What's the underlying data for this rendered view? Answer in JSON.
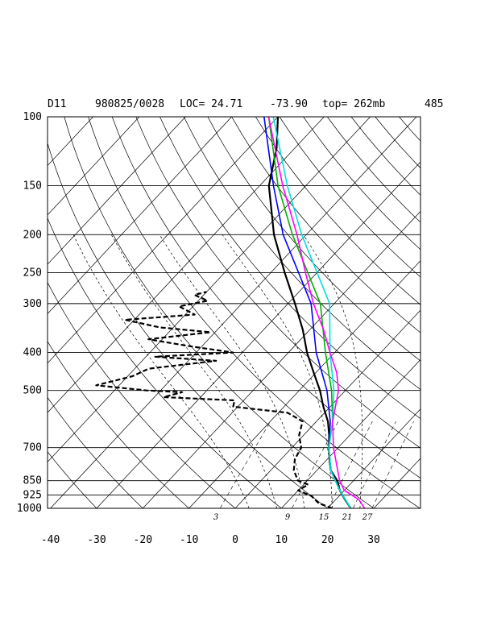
{
  "header": {
    "station": "D11",
    "datetime": "980825/0028",
    "loc": "LOC= 24.71",
    "lon": "-73.90",
    "top": "top= 262mb",
    "num": "485"
  },
  "chart_data": {
    "type": "line",
    "title": "D11    980825/0028 LOC= 24.71   -73.90  top= 262mb    485",
    "xlabel": "",
    "ylabel": "",
    "x_scale": "skewT",
    "y_scale": "log",
    "pressure_levels": [
      100,
      150,
      200,
      250,
      300,
      400,
      500,
      700,
      850,
      925,
      1000
    ],
    "temperature_ticks": [
      -40,
      -30,
      -20,
      -10,
      0,
      10,
      20,
      30
    ],
    "mixing_ratio_labels": [
      "3",
      "9",
      "15",
      "21",
      "27"
    ],
    "grid": true,
    "series": [
      {
        "style": "solid",
        "color": "#000000",
        "p": [
          1000,
          950,
          900,
          850,
          800,
          750,
          700,
          650,
          600,
          550,
          500,
          450,
          400,
          350,
          300,
          250,
          200,
          150,
          120,
          100
        ],
        "t": [
          25,
          22,
          19,
          16.5,
          13,
          10.5,
          8,
          5.5,
          2.5,
          -1.5,
          -5.5,
          -10.5,
          -16,
          -21.5,
          -28.5,
          -37,
          -47,
          -58,
          -64,
          -70
        ]
      },
      {
        "style": "dashed",
        "color": "#000000",
        "p": [
          1000,
          970,
          930,
          900,
          870,
          850,
          800,
          750,
          700,
          650,
          600,
          570,
          550,
          530,
          520,
          505,
          500,
          485,
          460,
          440,
          420,
          410,
          400,
          385,
          370,
          355,
          345,
          330,
          320,
          305,
          295,
          285,
          280
        ],
        "t": [
          21,
          17,
          14,
          10,
          11,
          8,
          5,
          3,
          2,
          -1,
          -3,
          -8,
          -21,
          -22,
          -38,
          -35,
          -43,
          -55,
          -49,
          -47,
          -34,
          -48,
          -32,
          -43,
          -53,
          -41,
          -53,
          -62,
          -48,
          -53,
          -48,
          -52,
          -50
        ]
      },
      {
        "style": "solid",
        "color": "#0000ff",
        "p": [
          1000,
          900,
          800,
          700,
          600,
          500,
          400,
          300,
          200,
          150,
          100
        ],
        "t": [
          25,
          19,
          13,
          8,
          3,
          -4,
          -14,
          -25,
          -45,
          -57,
          -73
        ]
      },
      {
        "style": "solid",
        "color": "#00b000",
        "p": [
          1000,
          900,
          800,
          700,
          600,
          500,
          400,
          300,
          200,
          150,
          100
        ],
        "t": [
          25,
          19,
          13,
          8,
          3.5,
          -3,
          -12,
          -23,
          -43,
          -56,
          -72
        ]
      },
      {
        "style": "solid",
        "color": "#00e0e0",
        "p": [
          1000,
          900,
          800,
          700,
          600,
          500,
          400,
          300,
          200,
          150,
          100
        ],
        "t": [
          25,
          19,
          13,
          8,
          3.5,
          -2.5,
          -11,
          -21,
          -41,
          -54,
          -71
        ]
      },
      {
        "style": "solid",
        "color": "#ff00ff",
        "p": [
          1000,
          950,
          900,
          850,
          800,
          700,
          600,
          500,
          450,
          400,
          350,
          300,
          250,
          200,
          150,
          100
        ],
        "t": [
          28,
          25,
          20,
          17,
          14.5,
          9,
          3.5,
          -1.5,
          -5.5,
          -11,
          -17,
          -24.5,
          -32.5,
          -42,
          -55,
          -72
        ]
      }
    ]
  }
}
